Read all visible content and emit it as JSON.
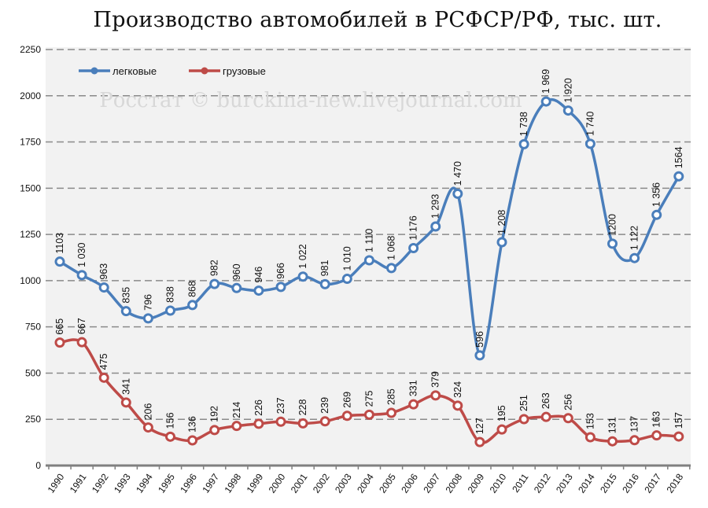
{
  "chart_data": {
    "type": "line",
    "title": "Производство автомобилей в РСФСР/РФ, тыс. шт.",
    "xlabel": "",
    "ylabel": "",
    "ylim": [
      0,
      2250
    ],
    "yticks": [
      0,
      250,
      500,
      750,
      1000,
      1250,
      1500,
      1750,
      2000,
      2250
    ],
    "grid": true,
    "legend_position": "top-left",
    "watermark": "Росстат © burckina-new.livejournal.com",
    "categories": [
      "1990",
      "1991",
      "1992",
      "1993",
      "1994",
      "1995",
      "1996",
      "1997",
      "1998",
      "1999",
      "2000",
      "2001",
      "2002",
      "2003",
      "2004",
      "2005",
      "2006",
      "2007",
      "2008",
      "2009",
      "2010",
      "2011",
      "2012",
      "2013",
      "2014",
      "2015",
      "2016",
      "2017",
      "2018"
    ],
    "series": [
      {
        "name": "легковые",
        "color": "#4a7ebb",
        "values": [
          1103,
          1030,
          963,
          835,
          796,
          838,
          868,
          982,
          960,
          946,
          966,
          1022,
          981,
          1010,
          1110,
          1068,
          1176,
          1293,
          1470,
          596,
          1208,
          1738,
          1969,
          1920,
          1740,
          1200,
          1122,
          1356,
          1564
        ],
        "labels": [
          "1103",
          "1 030",
          "963",
          "835",
          "796",
          "838",
          "868",
          "982",
          "960",
          "946",
          "966",
          "1 022",
          "981",
          "1 010",
          "1 110",
          "1 068",
          "1 176",
          "1 293",
          "1 470",
          "596",
          "1 208",
          "1 738",
          "1 969",
          "1 920",
          "1 740",
          "1200",
          "1 122",
          "1 356",
          "1564"
        ]
      },
      {
        "name": "грузовые",
        "color": "#be4b48",
        "values": [
          665,
          667,
          475,
          341,
          206,
          156,
          136,
          192,
          214,
          226,
          237,
          228,
          239,
          269,
          275,
          285,
          331,
          379,
          324,
          127,
          195,
          251,
          263,
          256,
          153,
          131,
          137,
          163,
          157
        ],
        "labels": [
          "665",
          "667",
          "475",
          "341",
          "206",
          "156",
          "136",
          "192",
          "214",
          "226",
          "237",
          "228",
          "239",
          "269",
          "275",
          "285",
          "331",
          "379",
          "324",
          "127",
          "195",
          "251",
          "263",
          "256",
          "153",
          "131",
          "137",
          "163",
          "157"
        ]
      }
    ]
  }
}
